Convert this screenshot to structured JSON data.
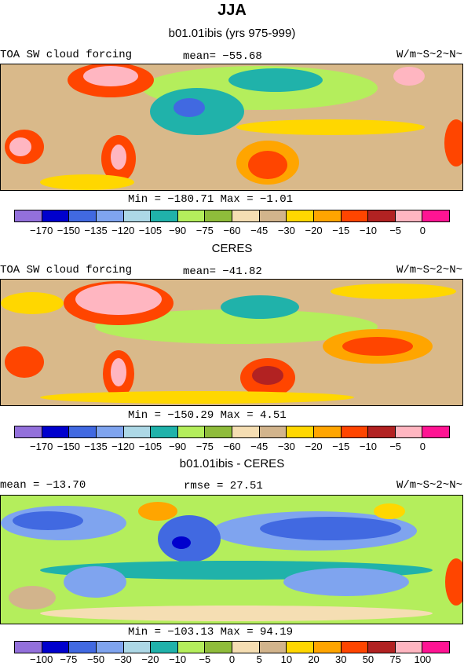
{
  "title": "JJA",
  "colors": [
    "#9370db",
    "#0000cd",
    "#4169e1",
    "#7fa4ef",
    "#add8e6",
    "#20b2aa",
    "#b4ee5c",
    "#8fbc3b",
    "#f5deb3",
    "#d2b48c",
    "#ffd700",
    "#ffa500",
    "#ff4500",
    "#b22222",
    "#ffb6c1",
    "#ff1493"
  ],
  "panels": [
    {
      "subtitle": "b01.01ibis (yrs 975-999)",
      "left": "TOA SW cloud forcing",
      "center": "mean= −55.68",
      "right": "W/m~S~2~N~",
      "minmax": "Min = −180.71 Max =  −1.01",
      "levels": [
        "−170",
        "−150",
        "−135",
        "−120",
        "−105",
        "−90",
        "−75",
        "−60",
        "−45",
        "−30",
        "−20",
        "−15",
        "−10",
        "−5",
        "0"
      ]
    },
    {
      "subtitle": "CERES",
      "left": "TOA SW cloud forcing",
      "center": "mean= −41.82",
      "right": "W/m~S~2~N~",
      "minmax": "Min = −150.29 Max =   4.51",
      "levels": [
        "−170",
        "−150",
        "−135",
        "−120",
        "−105",
        "−90",
        "−75",
        "−60",
        "−45",
        "−30",
        "−20",
        "−15",
        "−10",
        "−5",
        "0"
      ]
    },
    {
      "subtitle": "b01.01ibis - CERES",
      "left": "mean = −13.70",
      "center": "rmse =  27.51",
      "right": "W/m~S~2~N~",
      "minmax": "Min = −103.13 Max =  94.19",
      "levels": [
        "−100",
        "−75",
        "−50",
        "−30",
        "−20",
        "−10",
        "−5",
        "0",
        "5",
        "10",
        "20",
        "30",
        "50",
        "75",
        "100"
      ]
    }
  ],
  "chart_data": [
    {
      "type": "heatmap",
      "title": "JJA",
      "subtitle": "b01.01ibis (yrs 975-999)",
      "variable": "TOA SW cloud forcing",
      "units": "W/m~S~2~N~",
      "mean": -55.68,
      "min": -180.71,
      "max": -1.01,
      "levels": [
        -170,
        -150,
        -135,
        -120,
        -105,
        -90,
        -75,
        -60,
        -45,
        -30,
        -20,
        -15,
        -10,
        -5,
        0
      ]
    },
    {
      "type": "heatmap",
      "subtitle": "CERES",
      "variable": "TOA SW cloud forcing",
      "units": "W/m~S~2~N~",
      "mean": -41.82,
      "min": -150.29,
      "max": 4.51,
      "levels": [
        -170,
        -150,
        -135,
        -120,
        -105,
        -90,
        -75,
        -60,
        -45,
        -30,
        -20,
        -15,
        -10,
        -5,
        0
      ]
    },
    {
      "type": "heatmap",
      "subtitle": "b01.01ibis - CERES",
      "units": "W/m~S~2~N~",
      "mean": -13.7,
      "rmse": 27.51,
      "min": -103.13,
      "max": 94.19,
      "levels": [
        -100,
        -75,
        -50,
        -30,
        -20,
        -10,
        -5,
        0,
        5,
        10,
        20,
        30,
        50,
        75,
        100
      ]
    }
  ]
}
